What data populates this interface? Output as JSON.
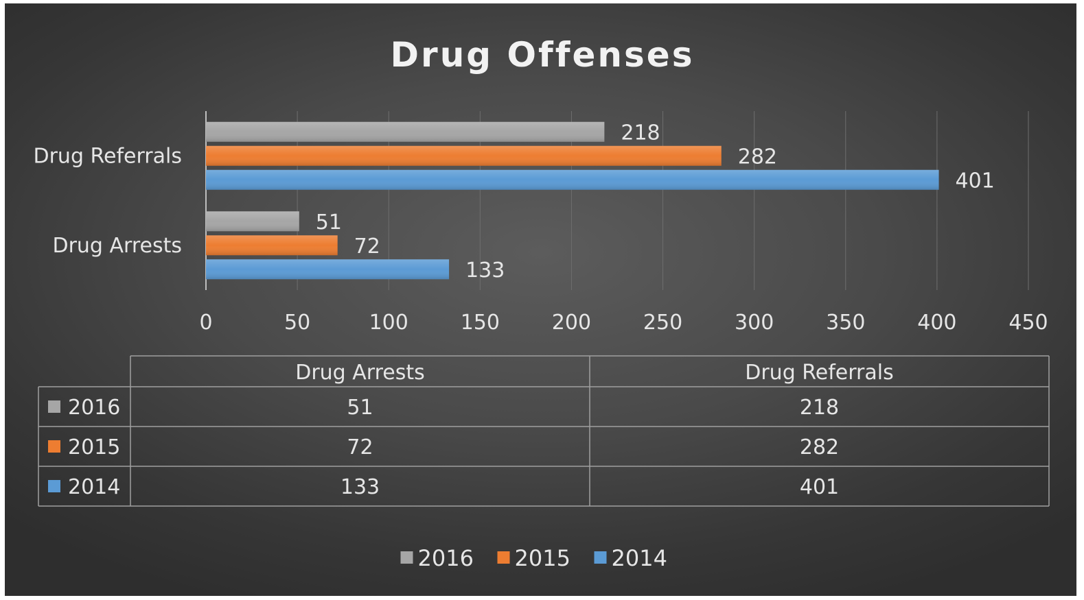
{
  "chart_data": {
    "type": "bar",
    "orientation": "horizontal",
    "title": "Drug Offenses",
    "categories": [
      "Drug Arrests",
      "Drug Referrals"
    ],
    "series": [
      {
        "name": "2016",
        "values": [
          51,
          218
        ],
        "color": "#a6a6a6"
      },
      {
        "name": "2015",
        "values": [
          72,
          282
        ],
        "color": "#ed7d31"
      },
      {
        "name": "2014",
        "values": [
          133,
          401
        ],
        "color": "#5b9bd5"
      }
    ],
    "xlim": [
      0,
      450
    ],
    "ticks": [
      "0",
      "50",
      "100",
      "150",
      "200",
      "250",
      "300",
      "350",
      "400",
      "450"
    ],
    "grid": true,
    "data_table": true,
    "legend_position": "bottom"
  },
  "colors": {
    "text": "#e6e6e6",
    "gridline": "#6e6e6e",
    "table_border": "#a0a0a0"
  }
}
